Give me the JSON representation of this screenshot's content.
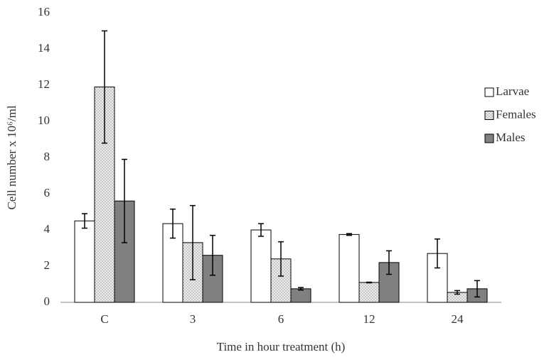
{
  "chart_data": {
    "type": "bar",
    "x_label": "Time in hour treatment (h)",
    "y_label": "Cell number x 10⁶/ml",
    "categories": [
      "C",
      "3",
      "6",
      "12",
      "24"
    ],
    "series": [
      {
        "name": "Larvae",
        "color": "#ffffff",
        "values": [
          4.5,
          4.35,
          4.0,
          3.75,
          2.7
        ],
        "errors": [
          0.4,
          0.8,
          0.35,
          0.05,
          0.8
        ]
      },
      {
        "name": "Females",
        "color": "#c8c8c8",
        "pattern": "crosshatch",
        "values": [
          11.9,
          3.3,
          2.4,
          1.1,
          0.55
        ],
        "errors": [
          3.1,
          2.05,
          0.95,
          0.02,
          0.1
        ]
      },
      {
        "name": "Males",
        "color": "#808080",
        "values": [
          5.6,
          2.6,
          0.75,
          2.2,
          0.75
        ],
        "errors": [
          2.3,
          1.1,
          0.07,
          0.65,
          0.45
        ]
      }
    ],
    "ylim": [
      0,
      16
    ],
    "yticks": [
      0,
      2,
      4,
      6,
      8,
      10,
      12,
      14,
      16
    ],
    "grid": false,
    "legend": "right"
  }
}
